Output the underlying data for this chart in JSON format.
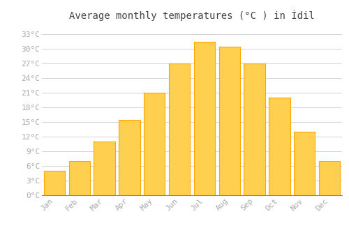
{
  "title": "Average monthly temperatures (°C ) in İdil",
  "months": [
    "Jan",
    "Feb",
    "Mar",
    "Apr",
    "May",
    "Jun",
    "Jul",
    "Aug",
    "Sep",
    "Oct",
    "Nov",
    "Dec"
  ],
  "temperatures": [
    5.0,
    7.0,
    11.0,
    15.5,
    21.0,
    27.0,
    31.5,
    30.5,
    27.0,
    20.0,
    13.0,
    7.0
  ],
  "bar_color_main": "#FFA500",
  "bar_color_light": "#FFD050",
  "background_color": "#FFFFFF",
  "grid_color": "#CCCCCC",
  "yticks": [
    0,
    3,
    6,
    9,
    12,
    15,
    18,
    21,
    24,
    27,
    30,
    33
  ],
  "ylim": [
    0,
    35
  ],
  "tick_label_color": "#AAAAAA",
  "title_color": "#444444",
  "title_fontsize": 10,
  "tick_fontsize": 8,
  "font_family": "monospace"
}
